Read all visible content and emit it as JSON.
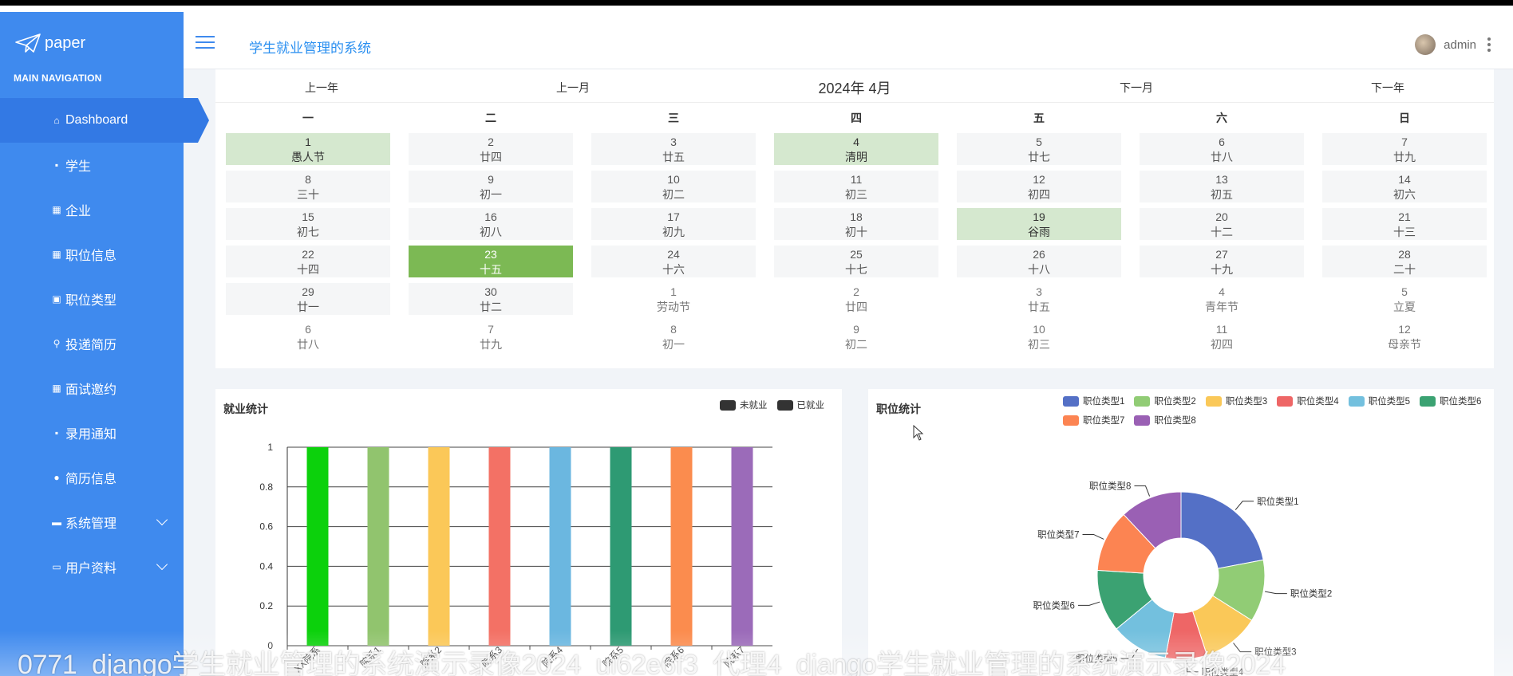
{
  "brand": {
    "name": "paper"
  },
  "sidebar": {
    "section_title": "MAIN NAVIGATION",
    "items": [
      {
        "label": "Dashboard",
        "icon": "home-icon",
        "active": true
      },
      {
        "label": "学生",
        "icon": "file-icon"
      },
      {
        "label": "企业",
        "icon": "grid-icon"
      },
      {
        "label": "职位信息",
        "icon": "grid-icon"
      },
      {
        "label": "职位类型",
        "icon": "image-icon"
      },
      {
        "label": "投递简历",
        "icon": "user-icon"
      },
      {
        "label": "面试邀约",
        "icon": "grid-icon"
      },
      {
        "label": "录用通知",
        "icon": "file-icon"
      },
      {
        "label": "简历信息",
        "icon": "pin-icon"
      },
      {
        "label": "系统管理",
        "icon": "gamepad-icon",
        "expandable": true
      },
      {
        "label": "用户资料",
        "icon": "calendar-icon",
        "expandable": true
      }
    ]
  },
  "header": {
    "title": "学生就业管理的系统",
    "user": "admin"
  },
  "calendar": {
    "prev_year": "上一年",
    "prev_month": "上一月",
    "current": "2024年 4月",
    "next_month": "下一月",
    "next_year": "下一年",
    "weekdays": [
      "一",
      "二",
      "三",
      "四",
      "五",
      "六",
      "日"
    ],
    "weeks": [
      [
        [
          "1",
          "愚人节",
          "hol"
        ],
        [
          "2",
          "廿四",
          "cur"
        ],
        [
          "3",
          "廿五",
          "cur"
        ],
        [
          "4",
          "清明",
          "hol"
        ],
        [
          "5",
          "廿七",
          "cur"
        ],
        [
          "6",
          "廿八",
          "cur"
        ],
        [
          "7",
          "廿九",
          "cur"
        ]
      ],
      [
        [
          "8",
          "三十",
          "cur"
        ],
        [
          "9",
          "初一",
          "cur"
        ],
        [
          "10",
          "初二",
          "cur"
        ],
        [
          "11",
          "初三",
          "cur"
        ],
        [
          "12",
          "初四",
          "cur"
        ],
        [
          "13",
          "初五",
          "cur"
        ],
        [
          "14",
          "初六",
          "cur"
        ]
      ],
      [
        [
          "15",
          "初七",
          "cur"
        ],
        [
          "16",
          "初八",
          "cur"
        ],
        [
          "17",
          "初九",
          "cur"
        ],
        [
          "18",
          "初十",
          "cur"
        ],
        [
          "19",
          "谷雨",
          "hol"
        ],
        [
          "20",
          "十二",
          "cur"
        ],
        [
          "21",
          "十三",
          "cur"
        ]
      ],
      [
        [
          "22",
          "十四",
          "cur"
        ],
        [
          "23",
          "十五",
          "today"
        ],
        [
          "24",
          "十六",
          "cur"
        ],
        [
          "25",
          "十七",
          "cur"
        ],
        [
          "26",
          "十八",
          "cur"
        ],
        [
          "27",
          "十九",
          "cur"
        ],
        [
          "28",
          "二十",
          "cur"
        ]
      ],
      [
        [
          "29",
          "廿一",
          "cur"
        ],
        [
          "30",
          "廿二",
          "cur"
        ],
        [
          "1",
          "劳动节",
          "other"
        ],
        [
          "2",
          "廿四",
          "other"
        ],
        [
          "3",
          "廿五",
          "other"
        ],
        [
          "4",
          "青年节",
          "other"
        ],
        [
          "5",
          "立夏",
          "other"
        ]
      ],
      [
        [
          "6",
          "廿八",
          "other"
        ],
        [
          "7",
          "廿九",
          "other"
        ],
        [
          "8",
          "初一",
          "other"
        ],
        [
          "9",
          "初二",
          "other"
        ],
        [
          "10",
          "初三",
          "other"
        ],
        [
          "11",
          "初四",
          "other"
        ],
        [
          "12",
          "母亲节",
          "other"
        ]
      ]
    ]
  },
  "employment_panel": {
    "title": "就业统计",
    "legend": [
      {
        "name": "未就业",
        "color": "#333333"
      },
      {
        "name": "已就业",
        "color": "#333333"
      }
    ]
  },
  "position_panel": {
    "title": "职位统计"
  },
  "chart_data": [
    {
      "type": "bar",
      "title": "就业统计",
      "categories": [
        "XX院系",
        "院系1",
        "院系2",
        "院系3",
        "院系4",
        "院系5",
        "院系6",
        "院系7"
      ],
      "values": [
        1,
        1,
        1,
        1,
        1,
        1,
        1,
        1
      ],
      "colors": [
        "#0cd10c",
        "#91c46e",
        "#fbc858",
        "#f37165",
        "#6bb7e0",
        "#2e9a73",
        "#fb8c4e",
        "#9b6bb9"
      ],
      "yticks": [
        "0",
        "0.2",
        "0.4",
        "0.6",
        "0.8",
        "1"
      ],
      "ylim": [
        0,
        1
      ],
      "grid": true,
      "legend": [
        "未就业",
        "已就业"
      ],
      "legend_position": "top-right"
    },
    {
      "type": "pie",
      "title": "职位统计",
      "labels": [
        "职位类型1",
        "职位类型2",
        "职位类型3",
        "职位类型4",
        "职位类型5",
        "职位类型6",
        "职位类型7",
        "职位类型8"
      ],
      "values": [
        22,
        12,
        11,
        8,
        11,
        12,
        12,
        12
      ],
      "colors": [
        "#5470c6",
        "#91cc75",
        "#fac858",
        "#ee6666",
        "#73c0de",
        "#3ba272",
        "#fc8452",
        "#9a60b4"
      ],
      "donut": true,
      "legend_position": "top"
    }
  ],
  "watermark": "0771_django学生就业管理的系统演示录像2024_ui62e6f3_代理4_django学生就业管理的系统演示录像2024"
}
